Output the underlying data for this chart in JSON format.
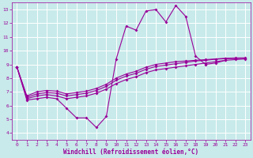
{
  "xlabel": "Windchill (Refroidissement éolien,°C)",
  "background_color": "#c8eaea",
  "line_color": "#990099",
  "grid_color": "#ffffff",
  "xlim": [
    -0.5,
    23.5
  ],
  "ylim": [
    3.5,
    13.5
  ],
  "xticks": [
    0,
    1,
    2,
    3,
    4,
    5,
    6,
    7,
    8,
    9,
    10,
    11,
    12,
    13,
    14,
    15,
    16,
    17,
    18,
    19,
    20,
    21,
    22,
    23
  ],
  "yticks": [
    4,
    5,
    6,
    7,
    8,
    9,
    10,
    11,
    12,
    13
  ],
  "series": [
    {
      "x": [
        0,
        1,
        2,
        3,
        4,
        5,
        6,
        7,
        8,
        9,
        10,
        11,
        12,
        13,
        14,
        15,
        16,
        17,
        18,
        19,
        20,
        21
      ],
      "y": [
        8.8,
        6.4,
        6.5,
        6.6,
        6.5,
        5.8,
        5.1,
        5.1,
        4.4,
        5.2,
        9.4,
        11.8,
        11.5,
        12.9,
        13.0,
        12.1,
        13.3,
        12.5,
        9.6,
        9.0,
        9.1,
        9.3
      ]
    },
    {
      "x": [
        0,
        1,
        2,
        3,
        4,
        5,
        6,
        7,
        8,
        9,
        10,
        11,
        12,
        13,
        14,
        15,
        16,
        17,
        18,
        19,
        20,
        21,
        22,
        23
      ],
      "y": [
        8.8,
        6.5,
        6.7,
        6.8,
        6.7,
        6.5,
        6.6,
        6.7,
        6.9,
        7.2,
        7.6,
        7.9,
        8.1,
        8.4,
        8.6,
        8.7,
        8.8,
        8.9,
        9.0,
        9.1,
        9.2,
        9.3,
        9.35,
        9.4
      ]
    },
    {
      "x": [
        0,
        1,
        2,
        3,
        4,
        5,
        6,
        7,
        8,
        9,
        10,
        11,
        12,
        13,
        14,
        15,
        16,
        17,
        18,
        19,
        20,
        21,
        22,
        23
      ],
      "y": [
        8.8,
        6.6,
        6.85,
        6.95,
        6.9,
        6.7,
        6.8,
        6.9,
        7.1,
        7.4,
        7.85,
        8.15,
        8.35,
        8.65,
        8.85,
        8.95,
        9.05,
        9.15,
        9.25,
        9.3,
        9.38,
        9.42,
        9.43,
        9.45
      ]
    },
    {
      "x": [
        0,
        1,
        2,
        3,
        4,
        5,
        6,
        7,
        8,
        9,
        10,
        11,
        12,
        13,
        14,
        15,
        16,
        17,
        18,
        19,
        20,
        21,
        22,
        23
      ],
      "y": [
        8.8,
        6.7,
        7.0,
        7.1,
        7.05,
        6.85,
        6.95,
        7.05,
        7.25,
        7.55,
        8.0,
        8.3,
        8.5,
        8.8,
        9.0,
        9.1,
        9.2,
        9.25,
        9.3,
        9.35,
        9.4,
        9.45,
        9.47,
        9.48
      ]
    }
  ],
  "marker_size": 2.0,
  "linewidth": 0.8,
  "tick_fontsize": 4.5,
  "xlabel_fontsize": 5.5
}
